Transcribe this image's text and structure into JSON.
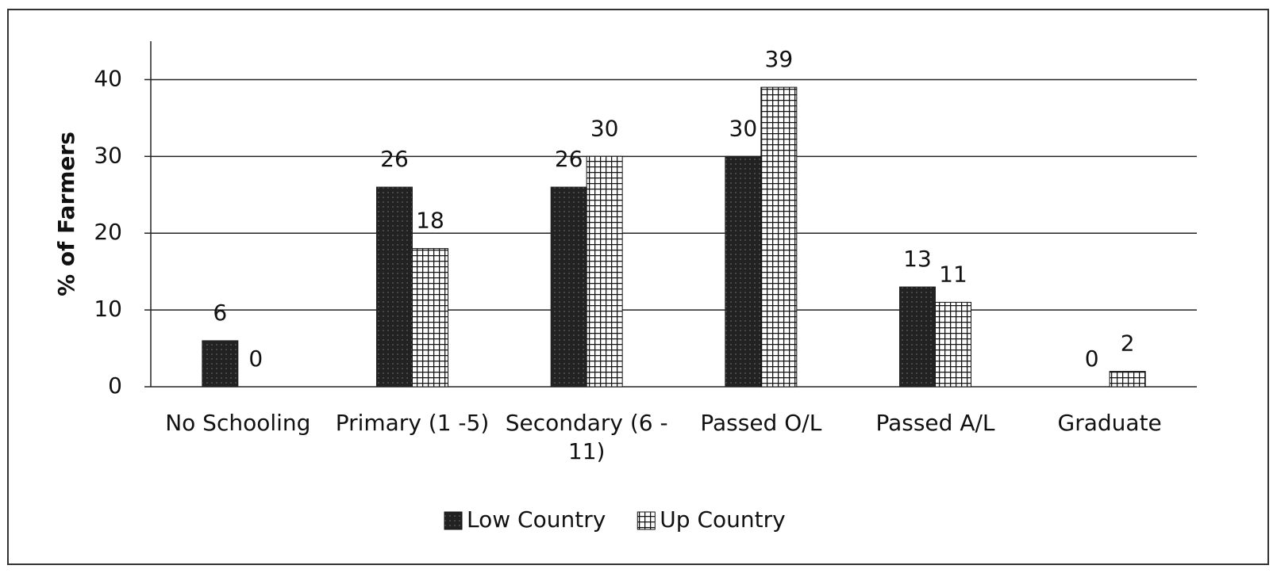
{
  "chart_data": {
    "type": "bar",
    "y_label": "% of Farmers",
    "categories": [
      "No Schooling",
      "Primary (1 -5)",
      "Secondary (6 - 11)",
      "Passed O/L",
      "Passed A/L",
      "Graduate"
    ],
    "series": [
      {
        "name": "Low Country",
        "color": "#222222",
        "values": [
          6,
          26,
          26,
          30,
          13,
          0
        ]
      },
      {
        "name": "Up Country",
        "color": "#ffffff",
        "values": [
          0,
          18,
          30,
          39,
          11,
          2
        ]
      }
    ],
    "ylim": [
      0,
      45
    ],
    "yticks": [
      0,
      10,
      20,
      30,
      40
    ],
    "grid": true,
    "legend": "bottom"
  }
}
